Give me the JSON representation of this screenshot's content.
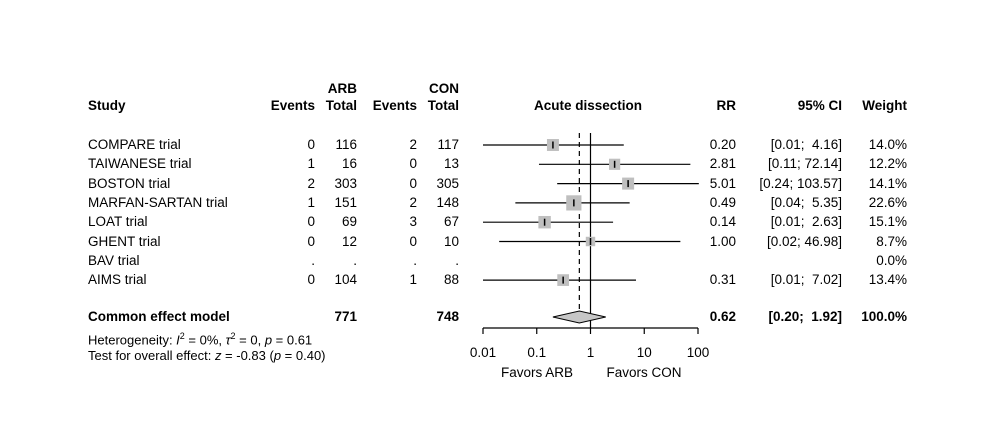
{
  "header": {
    "study": "Study",
    "group1": "ARB",
    "group2": "CON",
    "events": "Events",
    "total": "Total",
    "plot_title": "Acute dissection",
    "rr": "RR",
    "ci": "95% CI",
    "weight": "Weight"
  },
  "chart_data": {
    "type": "scatter",
    "subtype": "forest-plot",
    "title": "Acute dissection",
    "effect_measure": "RR",
    "x_scale": "log10",
    "x_ticks": [
      0.01,
      0.1,
      1,
      10,
      100
    ],
    "x_tick_labels": [
      "0.01",
      "0.1",
      "1",
      "10",
      "100"
    ],
    "x_range": [
      0.01,
      100
    ],
    "reference_line": 1,
    "pooled_line": 0.62,
    "favors_left": "Favors ARB",
    "favors_right": "Favors CON",
    "studies": [
      {
        "study": "COMPARE trial",
        "arb_events": "0",
        "arb_total": "116",
        "con_events": "2",
        "con_total": "117",
        "rr": 0.2,
        "ci_low": 0.01,
        "ci_high": 4.16,
        "rr_label": "0.20",
        "ci_label": "[0.01;  4.16]",
        "weight_pct": 14.0,
        "weight_label": "14.0%"
      },
      {
        "study": "TAIWANESE trial",
        "arb_events": "1",
        "arb_total": "16",
        "con_events": "0",
        "con_total": "13",
        "rr": 2.81,
        "ci_low": 0.11,
        "ci_high": 72.14,
        "rr_label": "2.81",
        "ci_label": "[0.11; 72.14]",
        "weight_pct": 12.2,
        "weight_label": "12.2%"
      },
      {
        "study": "BOSTON trial",
        "arb_events": "2",
        "arb_total": "303",
        "con_events": "0",
        "con_total": "305",
        "rr": 5.01,
        "ci_low": 0.24,
        "ci_high": 103.57,
        "rr_label": "5.01",
        "ci_label": "[0.24; 103.57]",
        "weight_pct": 14.1,
        "weight_label": "14.1%"
      },
      {
        "study": "MARFAN-SARTAN trial",
        "arb_events": "1",
        "arb_total": "151",
        "con_events": "2",
        "con_total": "148",
        "rr": 0.49,
        "ci_low": 0.04,
        "ci_high": 5.35,
        "rr_label": "0.49",
        "ci_label": "[0.04;  5.35]",
        "weight_pct": 22.6,
        "weight_label": "22.6%"
      },
      {
        "study": "LOAT trial",
        "arb_events": "0",
        "arb_total": "69",
        "con_events": "3",
        "con_total": "67",
        "rr": 0.14,
        "ci_low": 0.01,
        "ci_high": 2.63,
        "rr_label": "0.14",
        "ci_label": "[0.01;  2.63]",
        "weight_pct": 15.1,
        "weight_label": "15.1%"
      },
      {
        "study": "GHENT trial",
        "arb_events": "0",
        "arb_total": "12",
        "con_events": "0",
        "con_total": "10",
        "rr": 1.0,
        "ci_low": 0.02,
        "ci_high": 46.98,
        "rr_label": "1.00",
        "ci_label": "[0.02; 46.98]",
        "weight_pct": 8.7,
        "weight_label": "8.7%"
      },
      {
        "study": "BAV trial",
        "arb_events": ".",
        "arb_total": ".",
        "con_events": ".",
        "con_total": ".",
        "rr": null,
        "ci_low": null,
        "ci_high": null,
        "rr_label": "",
        "ci_label": "",
        "weight_pct": 0.0,
        "weight_label": "0.0%"
      },
      {
        "study": "AIMS trial",
        "arb_events": "0",
        "arb_total": "104",
        "con_events": "1",
        "con_total": "88",
        "rr": 0.31,
        "ci_low": 0.01,
        "ci_high": 7.02,
        "rr_label": "0.31",
        "ci_label": "[0.01;  7.02]",
        "weight_pct": 13.4,
        "weight_label": "13.4%"
      }
    ],
    "pooled": {
      "label": "Common effect model",
      "arb_total": "771",
      "con_total": "748",
      "rr": 0.62,
      "ci_low": 0.2,
      "ci_high": 1.92,
      "rr_label": "0.62",
      "ci_label": "[0.20;  1.92]",
      "weight_label": "100.0%"
    },
    "colors": {
      "square": "#bfbfbf",
      "diamond": "#c6c6c6",
      "line": "#000000"
    }
  },
  "footnotes": [
    {
      "segments": [
        {
          "t": "Heterogeneity: "
        },
        {
          "t": "I",
          "i": true
        },
        {
          "t": "2",
          "sup": true
        },
        {
          "t": " = 0%, "
        },
        {
          "t": "τ",
          "i": true
        },
        {
          "t": "2",
          "sup": true
        },
        {
          "t": " = 0, "
        },
        {
          "t": "p",
          "i": true
        },
        {
          "t": " = 0.61"
        }
      ]
    },
    {
      "segments": [
        {
          "t": "Test for overall effect: "
        },
        {
          "t": "z",
          "i": true
        },
        {
          "t": " = -0.83 ("
        },
        {
          "t": "p",
          "i": true
        },
        {
          "t": " = 0.40)"
        }
      ]
    }
  ]
}
